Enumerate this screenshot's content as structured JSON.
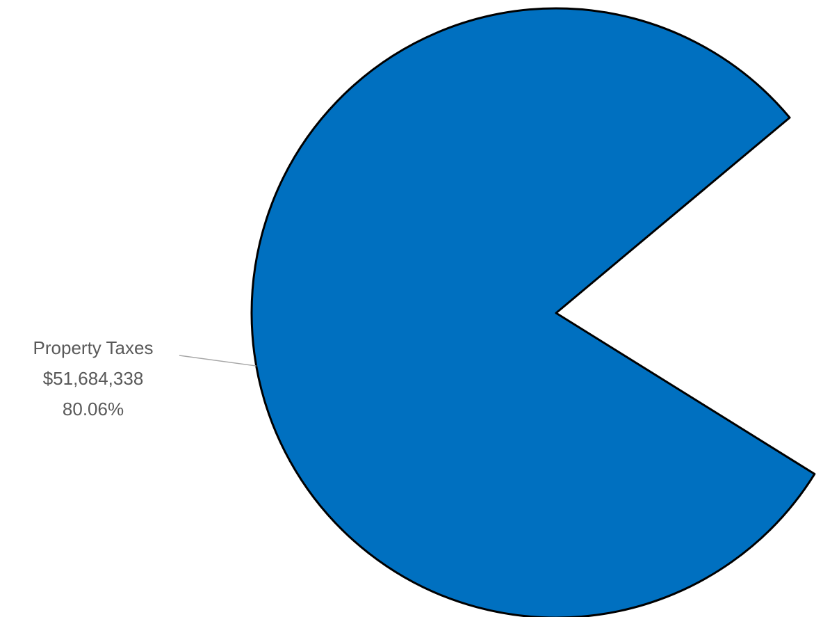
{
  "chart_data": {
    "type": "pie",
    "title": "",
    "slices": [
      {
        "label": "Property Taxes",
        "amount": "$51,684,338",
        "percent_label": "80.06%",
        "value": 80.06,
        "color": "#0070C0"
      }
    ],
    "legend": "none",
    "outline_color": "#000000",
    "leader_line_color": "#A6A6A6",
    "label_color": "#595959"
  }
}
